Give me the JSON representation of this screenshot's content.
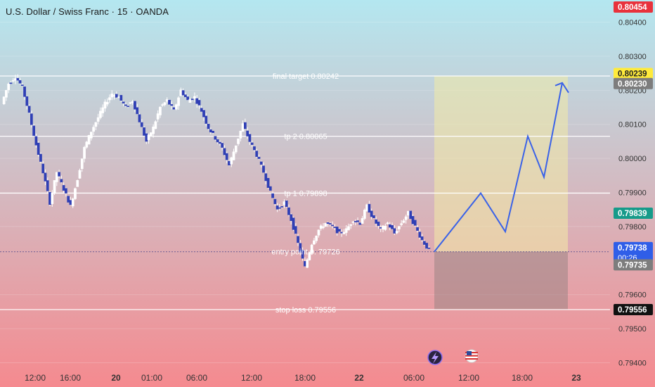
{
  "header": {
    "title": "U.S. Dollar / Swiss Franc · 15 · OANDA"
  },
  "colors": {
    "bg_top": "#b4e7f0",
    "bg_bottom": "#f58a8f",
    "candle": "#2f3fb5",
    "wick": "#ffffff",
    "projection": "#3a62e8",
    "target_zone": "#f3eba6",
    "stop_zone": "#9c8585",
    "label_red": "#e8323c",
    "label_yellow": "#ffeb3b",
    "label_gray": "#7d7d7d",
    "label_green": "#169b8a",
    "label_blue": "#2f5ee8",
    "label_black": "#111111"
  },
  "chart_data": {
    "type": "candlestick",
    "y_axis": {
      "ticks": [
        "0.80400",
        "0.80300",
        "0.80200",
        "0.80100",
        "0.80000",
        "0.79900",
        "0.79800",
        "0.79600",
        "0.79500",
        "0.79400"
      ],
      "range": [
        0.7938,
        0.8047
      ]
    },
    "x_axis": {
      "ticks": [
        "12:00",
        "16:00",
        "20",
        "01:00",
        "06:00",
        "12:00",
        "18:00",
        "22",
        "06:00",
        "12:00",
        "18:00",
        "23"
      ]
    },
    "levels": [
      {
        "label": "final target 0.80242",
        "value": 0.80242
      },
      {
        "label": "tp  2  0.80065",
        "value": 0.80065
      },
      {
        "label": "tp  1  0.79898",
        "value": 0.79898
      },
      {
        "label": "entry point  0. 79726",
        "value": 0.79726
      },
      {
        "label": "stop loss  0.79556",
        "value": 0.79556
      }
    ],
    "price_labels": [
      {
        "text": "0.80454",
        "value": 0.80454,
        "style": "red"
      },
      {
        "text": "0.80239",
        "value": 0.80239,
        "style": "yellow"
      },
      {
        "text": "0.80230",
        "value": 0.8023,
        "style": "gray"
      },
      {
        "text": "0.79839",
        "value": 0.79839,
        "style": "green"
      },
      {
        "text": "0.79738",
        "value": 0.79738,
        "style": "blue",
        "sub": "00:26"
      },
      {
        "text": "0.79735",
        "value": 0.79735,
        "style": "gray"
      },
      {
        "text": "0.79556",
        "value": 0.79556,
        "style": "black"
      }
    ],
    "projection": {
      "points": [
        0.79726,
        0.79898,
        0.79785,
        0.80065,
        0.79945,
        0.80222
      ]
    },
    "candles": {
      "path": [
        0.8016,
        0.8022,
        0.8024,
        0.8021,
        0.8013,
        0.8004,
        0.7996,
        0.7987,
        0.7996,
        0.7991,
        0.7986,
        0.7994,
        0.8003,
        0.8008,
        0.8012,
        0.8016,
        0.8019,
        0.8018,
        0.8015,
        0.8017,
        0.8011,
        0.8005,
        0.8009,
        0.8015,
        0.8017,
        0.8014,
        0.802,
        0.8017,
        0.8018,
        0.8014,
        0.8009,
        0.8006,
        0.8003,
        0.7998,
        0.8004,
        0.801,
        0.8005,
        0.8001,
        0.7996,
        0.799,
        0.7985,
        0.7987,
        0.7982,
        0.7975,
        0.7968,
        0.7975,
        0.7979,
        0.7981,
        0.798,
        0.7978,
        0.7979,
        0.7982,
        0.7981,
        0.7986,
        0.7982,
        0.7979,
        0.7981,
        0.7978,
        0.7981,
        0.7984,
        0.798,
        0.7976,
        0.7973
      ]
    }
  }
}
